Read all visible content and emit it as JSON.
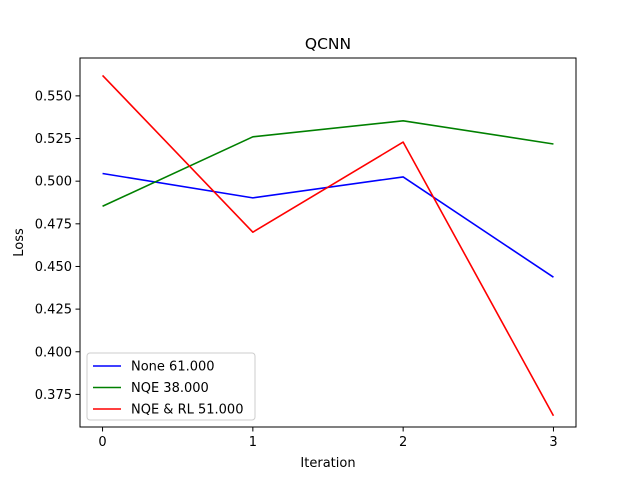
{
  "chart_data": {
    "type": "line",
    "title": "QCNN",
    "xlabel": "Iteration",
    "ylabel": "Loss",
    "x": [
      0,
      1,
      2,
      3
    ],
    "x_ticks": [
      0,
      1,
      2,
      3
    ],
    "x_tick_labels": [
      "0",
      "1",
      "2",
      "3"
    ],
    "xlim": [
      -0.15,
      3.15
    ],
    "y_ticks": [
      0.375,
      0.4,
      0.425,
      0.45,
      0.475,
      0.5,
      0.525,
      0.55
    ],
    "y_tick_labels": [
      "0.375",
      "0.400",
      "0.425",
      "0.450",
      "0.475",
      "0.500",
      "0.525",
      "0.550"
    ],
    "ylim": [
      0.3559,
      0.5722
    ],
    "grid": false,
    "legend_position": "lower-left",
    "series": [
      {
        "name": "None 61.000",
        "color": "#0000ff",
        "values": [
          0.5045,
          0.4902,
          0.5025,
          0.4437
        ]
      },
      {
        "name": "NQE 38.000",
        "color": "#008000",
        "values": [
          0.4853,
          0.526,
          0.5354,
          0.5218
        ]
      },
      {
        "name": "NQE & RL 51.000",
        "color": "#ff0000",
        "values": [
          0.562,
          0.4701,
          0.5229,
          0.3625
        ]
      }
    ]
  }
}
